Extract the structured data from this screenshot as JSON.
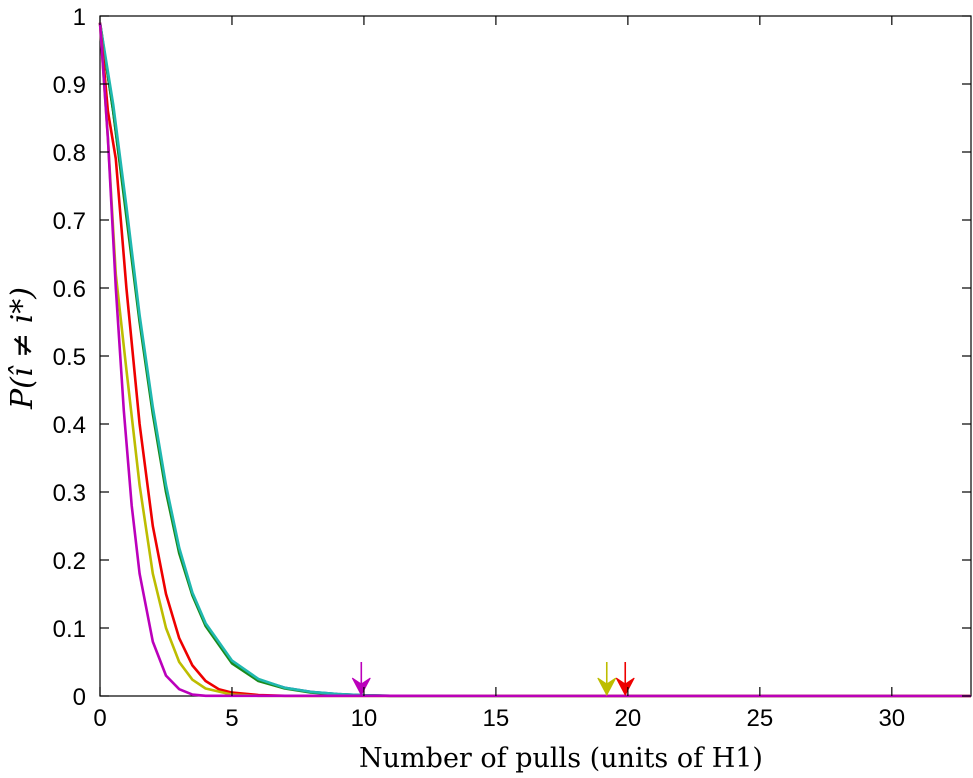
{
  "chart_data": {
    "type": "line",
    "xlabel": "Number of pulls (units of H1)",
    "ylabel": "P(î ≠ i*)",
    "xlim": [
      0,
      33
    ],
    "ylim": [
      0,
      1
    ],
    "xticks": [
      0,
      5,
      10,
      15,
      20,
      25,
      30
    ],
    "yticks": [
      0,
      0.1,
      0.2,
      0.3,
      0.4,
      0.5,
      0.6,
      0.7,
      0.8,
      0.9,
      1
    ],
    "ytick_labels": [
      "0",
      "0.1",
      "0.2",
      "0.3",
      "0.4",
      "0.5",
      "0.6",
      "0.7",
      "0.8",
      "0.9",
      "1"
    ],
    "grid": false,
    "series": [
      {
        "color": "#1f1fbf",
        "x": [
          0,
          0.5,
          1,
          1.5,
          2,
          2.5,
          3,
          3.5,
          4,
          5,
          6,
          7,
          8,
          9,
          10,
          11,
          33
        ],
        "y": [
          0.99,
          0.86,
          0.71,
          0.555,
          0.42,
          0.305,
          0.215,
          0.15,
          0.105,
          0.05,
          0.024,
          0.012,
          0.006,
          0.003,
          0.001,
          0.0003,
          0
        ]
      },
      {
        "color": "#1a8a1a",
        "x": [
          0,
          0.5,
          1,
          1.5,
          2,
          2.5,
          3,
          3.5,
          4,
          5,
          6,
          7,
          8,
          9,
          10,
          11,
          33
        ],
        "y": [
          0.99,
          0.86,
          0.705,
          0.55,
          0.415,
          0.3,
          0.21,
          0.148,
          0.103,
          0.048,
          0.022,
          0.011,
          0.005,
          0.0025,
          0.001,
          0.0003,
          0
        ]
      },
      {
        "color": "#20b8b0",
        "x": [
          0,
          0.5,
          1,
          1.5,
          2,
          2.5,
          3,
          3.5,
          4,
          5,
          6,
          7,
          8,
          9,
          10,
          11,
          33
        ],
        "y": [
          0.99,
          0.87,
          0.72,
          0.56,
          0.425,
          0.31,
          0.218,
          0.152,
          0.107,
          0.052,
          0.025,
          0.012,
          0.006,
          0.003,
          0.001,
          0.0003,
          0
        ]
      },
      {
        "color": "#ee0000",
        "x": [
          0,
          0.3,
          0.6,
          1,
          1.5,
          2,
          2.5,
          3,
          3.5,
          4,
          4.5,
          5,
          6,
          7,
          33
        ],
        "y": [
          0.99,
          0.86,
          0.79,
          0.6,
          0.4,
          0.25,
          0.15,
          0.085,
          0.045,
          0.022,
          0.01,
          0.005,
          0.0015,
          0.0003,
          0
        ]
      },
      {
        "color": "#bdbd00",
        "x": [
          0,
          0.3,
          0.6,
          1,
          1.5,
          2,
          2.5,
          3,
          3.5,
          4,
          5,
          6,
          33
        ],
        "y": [
          0.99,
          0.82,
          0.62,
          0.48,
          0.31,
          0.18,
          0.1,
          0.05,
          0.024,
          0.011,
          0.002,
          0.0003,
          0
        ]
      },
      {
        "color": "#bb00bb",
        "x": [
          0,
          0.3,
          0.6,
          0.9,
          1.2,
          1.5,
          2,
          2.5,
          3,
          3.5,
          4,
          33
        ],
        "y": [
          0.99,
          0.82,
          0.6,
          0.42,
          0.28,
          0.18,
          0.08,
          0.03,
          0.01,
          0.002,
          0.0003,
          0
        ]
      }
    ],
    "markers": [
      {
        "x": 9.9,
        "color": "#bb00bb"
      },
      {
        "x": 19.2,
        "color": "#bdbd00"
      },
      {
        "x": 19.9,
        "color": "#ee0000"
      }
    ]
  }
}
